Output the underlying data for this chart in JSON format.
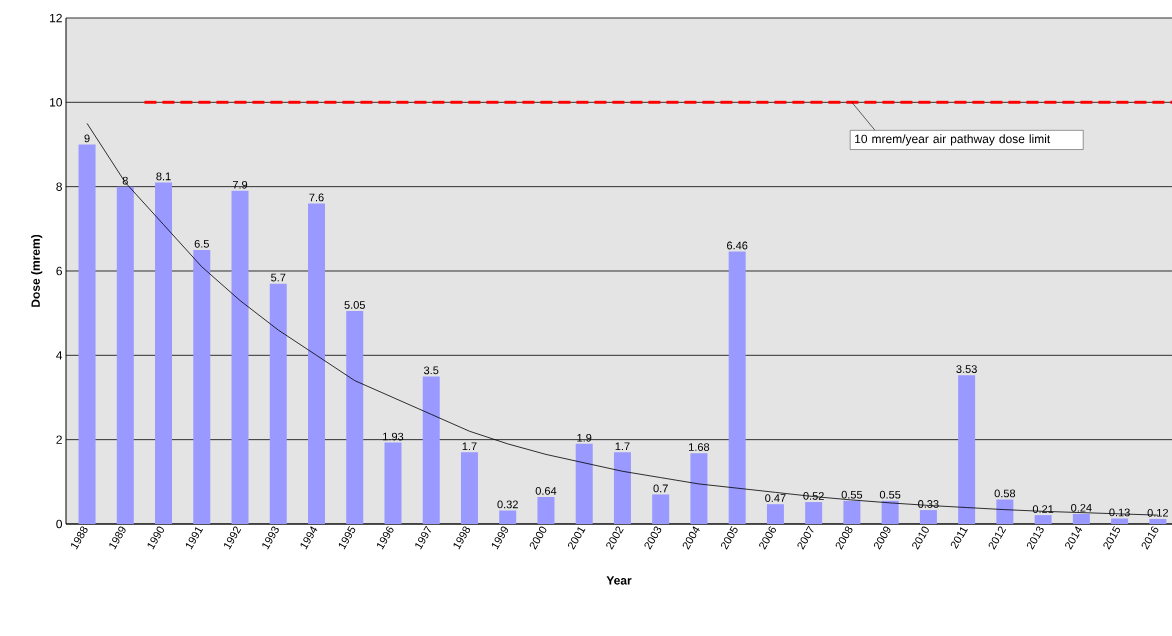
{
  "chart_data": {
    "type": "bar",
    "xlabel": "Year",
    "ylabel": "Dose (mrem)",
    "categories": [
      "1988",
      "1989",
      "1990",
      "1991",
      "1992",
      "1993",
      "1994",
      "1995",
      "1996",
      "1997",
      "1998",
      "1999",
      "2000",
      "2001",
      "2002",
      "2003",
      "2004",
      "2005",
      "2006",
      "2007",
      "2008",
      "2009",
      "2010",
      "2011",
      "2012",
      "2013",
      "2014",
      "2015",
      "2016"
    ],
    "series": [
      {
        "color": "#9999ff",
        "values": [
          9,
          8,
          8.1,
          6.5,
          7.9,
          5.7,
          7.6,
          5.05,
          1.93,
          3.5,
          1.7,
          0.32,
          0.64,
          1.9,
          1.7,
          0.7,
          1.68,
          6.46,
          0.47,
          0.52,
          0.55,
          0.55,
          0.33,
          3.53,
          0.58,
          0.21,
          0.24,
          0.13,
          0.12
        ],
        "value_labels": [
          "9",
          "8",
          "8.1",
          "6.5",
          "7.9",
          "5.7",
          "7.6",
          "5.05",
          "1.93",
          "3.5",
          "1.7",
          "0.32",
          "0.64",
          "1.9",
          "1.7",
          "0.7",
          "1.68",
          "6.46",
          "0.47",
          "0.52",
          "0.55",
          "0.55",
          "0.33",
          "3.53",
          "0.58",
          "0.21",
          "0.24",
          "0.13",
          "0.12"
        ]
      },
      {
        "type": "line",
        "color": "#000000",
        "values": [
          9.5,
          8.1,
          7.1,
          6.1,
          5.3,
          4.6,
          4.0,
          3.4,
          3.0,
          2.6,
          2.2,
          1.9,
          1.65,
          1.45,
          1.25,
          1.1,
          0.95,
          0.85,
          0.75,
          0.65,
          0.57,
          0.5,
          0.44,
          0.39,
          0.34,
          0.3,
          0.27,
          0.24,
          0.21
        ]
      }
    ],
    "ylim": [
      0,
      12
    ],
    "yticks": [
      0,
      2,
      4,
      6,
      8,
      10,
      12
    ],
    "grid": "y",
    "ref_lines": [
      {
        "axis": "y",
        "value": 10,
        "color": "#ff0000",
        "line_style": "dashed"
      }
    ],
    "annotations": [
      {
        "text": "10 mrem/year air pathway dose limit",
        "x": "2008",
        "y": 10
      }
    ]
  }
}
